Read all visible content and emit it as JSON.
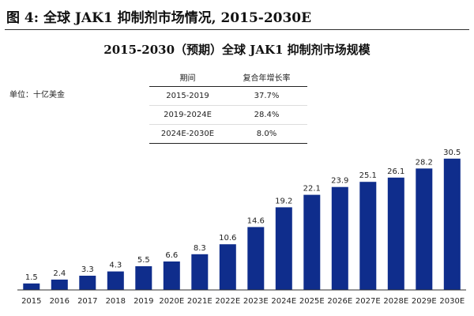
{
  "caption": "图 4: 全球 JAK1 抑制剂市场情况, 2015-2030E",
  "chart_data": {
    "type": "bar",
    "title": "2015-2030（预期）全球 JAK1 抑制剂市场规模",
    "unit_label": "单位：十亿美金",
    "categories": [
      "2015",
      "2016",
      "2017",
      "2018",
      "2019",
      "2020E",
      "2021E",
      "2022E",
      "2023E",
      "2024E",
      "2025E",
      "2026E",
      "2027E",
      "2028E",
      "2029E",
      "2030E"
    ],
    "values": [
      1.5,
      2.4,
      3.3,
      4.3,
      5.5,
      6.6,
      8.3,
      10.6,
      14.6,
      19.2,
      22.1,
      23.9,
      25.1,
      26.1,
      28.2,
      30.5
    ],
    "value_labels": [
      "1.5",
      "2.4",
      "3.3",
      "4.3",
      "5.5",
      "6.6",
      "8.3",
      "10.6",
      "14.6",
      "19.2",
      "22.1",
      "23.9",
      "25.1",
      "26.1",
      "28.2",
      "30.5"
    ],
    "ylim": [
      0,
      32
    ],
    "bar_color": "#0f2d8c",
    "cagr_table": {
      "headers": [
        "期间",
        "复合年增长率"
      ],
      "rows": [
        [
          "2015-2019",
          "37.7%"
        ],
        [
          "2019-2024E",
          "28.4%"
        ],
        [
          "2024E-2030E",
          "8.0%"
        ]
      ]
    }
  }
}
